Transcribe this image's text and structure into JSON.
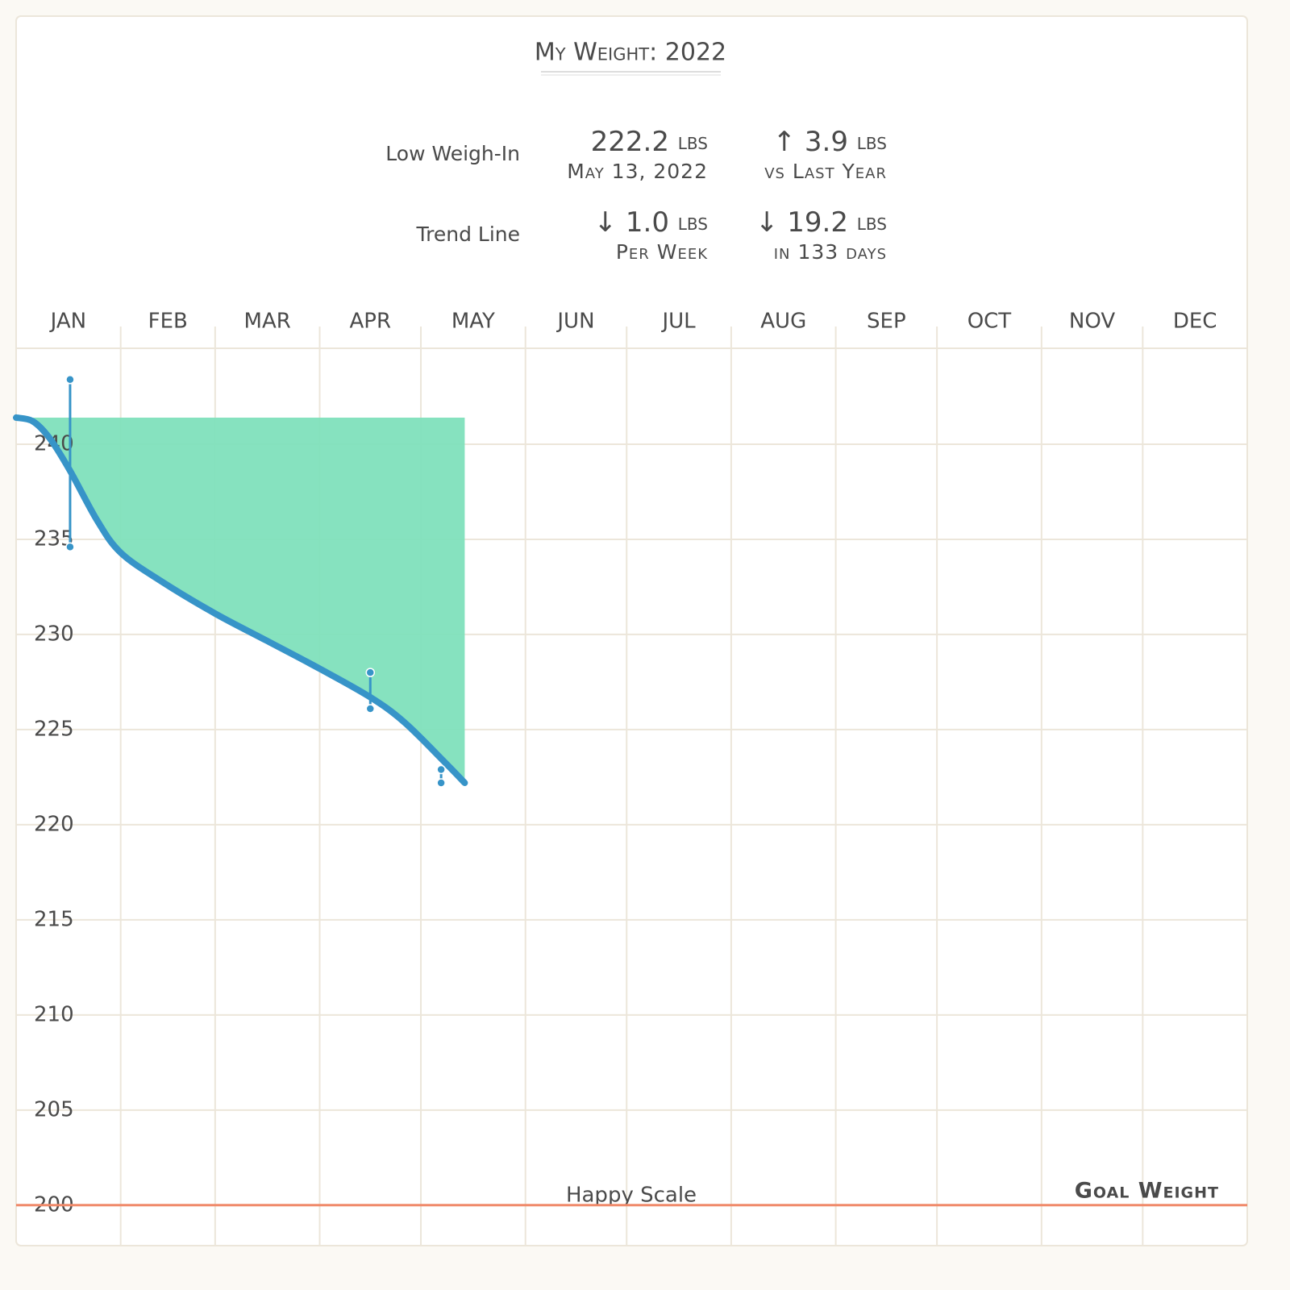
{
  "chart_data": {
    "type": "line",
    "title": "My Weight: 2022",
    "xlim": [
      0,
      365
    ],
    "xticks": [
      {
        "value": 0,
        "label": "JAN"
      },
      {
        "value": 31,
        "label": "FEB"
      },
      {
        "value": 59,
        "label": "MAR"
      },
      {
        "value": 90,
        "label": "APR"
      },
      {
        "value": 120,
        "label": "MAY"
      },
      {
        "value": 151,
        "label": "JUN"
      },
      {
        "value": 181,
        "label": "JUL"
      },
      {
        "value": 212,
        "label": "AUG"
      },
      {
        "value": 243,
        "label": "SEP"
      },
      {
        "value": 273,
        "label": "OCT"
      },
      {
        "value": 304,
        "label": "NOV"
      },
      {
        "value": 334,
        "label": "DEC"
      }
    ],
    "ylim": [
      198,
      245
    ],
    "yticks": [
      200,
      205,
      210,
      215,
      220,
      225,
      230,
      235,
      240
    ],
    "grid": true,
    "trend": {
      "color": "#3794c8",
      "area_color": "#7fe0bc",
      "x": [
        0,
        5,
        10,
        16,
        24,
        31,
        43,
        59,
        74,
        90,
        105,
        115,
        127,
        133
      ],
      "values": [
        241.4,
        241.2,
        240.3,
        238.6,
        236.0,
        234.3,
        232.8,
        231.1,
        229.7,
        228.2,
        226.7,
        225.4,
        223.3,
        222.2
      ]
    },
    "ranges": {
      "color": "#3794c8",
      "x": [
        16,
        105,
        126
      ],
      "low": [
        234.6,
        226.1,
        222.2
      ],
      "high": [
        243.4,
        228.0,
        222.9
      ]
    },
    "goal": {
      "label": "Goal Weight",
      "value": 200,
      "color": "#f08a6a"
    },
    "watermark": "Happy Scale"
  },
  "summary": {
    "rows": [
      {
        "label": "Low Weigh-In",
        "cells": [
          {
            "value": "222.2",
            "unit": "lbs",
            "note": "May 13, 2022"
          },
          {
            "value": "↑ 3.9",
            "unit": "lbs",
            "note": "vs Last Year"
          }
        ]
      },
      {
        "label": "Trend Line",
        "cells": [
          {
            "value": "↓ 1.0",
            "unit": "lbs",
            "note": "Per Week"
          },
          {
            "value": "↓ 19.2",
            "unit": "lbs",
            "note": "in 133 days"
          }
        ]
      }
    ]
  }
}
